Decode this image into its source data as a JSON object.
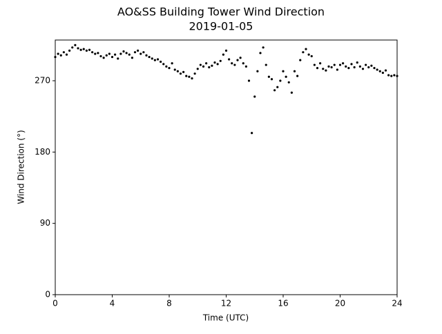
{
  "chart_data": {
    "type": "scatter",
    "title": "AO&SS Building Tower Wind Direction",
    "subtitle": "2019-01-05",
    "x_label": "Time (UTC)",
    "y_label": "Wind Direction (°)",
    "xlim": [
      0,
      24
    ],
    "xticks": [
      0,
      4,
      8,
      12,
      16,
      20,
      24
    ],
    "ylim": [
      0,
      321.4
    ],
    "yticks": [
      0,
      90,
      180,
      270
    ],
    "color": "#000000",
    "x": [
      0,
      0.2,
      0.4,
      0.6,
      0.8,
      1,
      1.2,
      1.4,
      1.6,
      1.8,
      2,
      2.2,
      2.4,
      2.6,
      2.8,
      3,
      3.2,
      3.4,
      3.6,
      3.8,
      4,
      4.2,
      4.4,
      4.6,
      4.8,
      5,
      5.2,
      5.4,
      5.6,
      5.8,
      6,
      6.2,
      6.4,
      6.6,
      6.8,
      7,
      7.2,
      7.4,
      7.6,
      7.8,
      8,
      8.2,
      8.4,
      8.6,
      8.8,
      9,
      9.2,
      9.4,
      9.6,
      9.8,
      10,
      10.2,
      10.4,
      10.6,
      10.8,
      11,
      11.2,
      11.4,
      11.6,
      11.8,
      12,
      12.2,
      12.4,
      12.6,
      12.8,
      13,
      13.2,
      13.4,
      13.6,
      13.8,
      14,
      14.2,
      14.4,
      14.6,
      14.8,
      15,
      15.2,
      15.4,
      15.6,
      15.8,
      16,
      16.2,
      16.4,
      16.6,
      16.8,
      17,
      17.2,
      17.4,
      17.6,
      17.8,
      18,
      18.2,
      18.4,
      18.6,
      18.8,
      19,
      19.2,
      19.4,
      19.6,
      19.8,
      20,
      20.2,
      20.4,
      20.6,
      20.8,
      21,
      21.2,
      21.4,
      21.6,
      21.8,
      22,
      22.2,
      22.4,
      22.6,
      22.8,
      23,
      23.2,
      23.4,
      23.6,
      23.8,
      24
    ],
    "values": [
      300,
      304,
      302,
      306,
      303,
      308,
      312,
      315,
      311,
      309,
      310,
      308,
      309,
      306,
      304,
      305,
      301,
      299,
      302,
      304,
      300,
      303,
      298,
      304,
      307,
      305,
      303,
      299,
      306,
      308,
      304,
      306,
      302,
      300,
      298,
      296,
      297,
      294,
      291,
      288,
      286,
      292,
      284,
      282,
      279,
      281,
      276,
      275,
      273,
      279,
      285,
      290,
      288,
      292,
      287,
      289,
      293,
      291,
      295,
      303,
      308,
      297,
      292,
      290,
      296,
      299,
      292,
      288,
      270,
      204,
      250,
      282,
      305,
      312,
      290,
      275,
      272,
      258,
      262,
      270,
      282,
      275,
      268,
      255,
      282,
      276,
      296,
      306,
      310,
      303,
      301,
      290,
      286,
      292,
      285,
      283,
      288,
      287,
      290,
      284,
      290,
      292,
      288,
      286,
      291,
      287,
      293,
      288,
      285,
      290,
      287,
      289,
      286,
      284,
      282,
      280,
      283,
      277,
      276,
      277,
      276
    ]
  }
}
